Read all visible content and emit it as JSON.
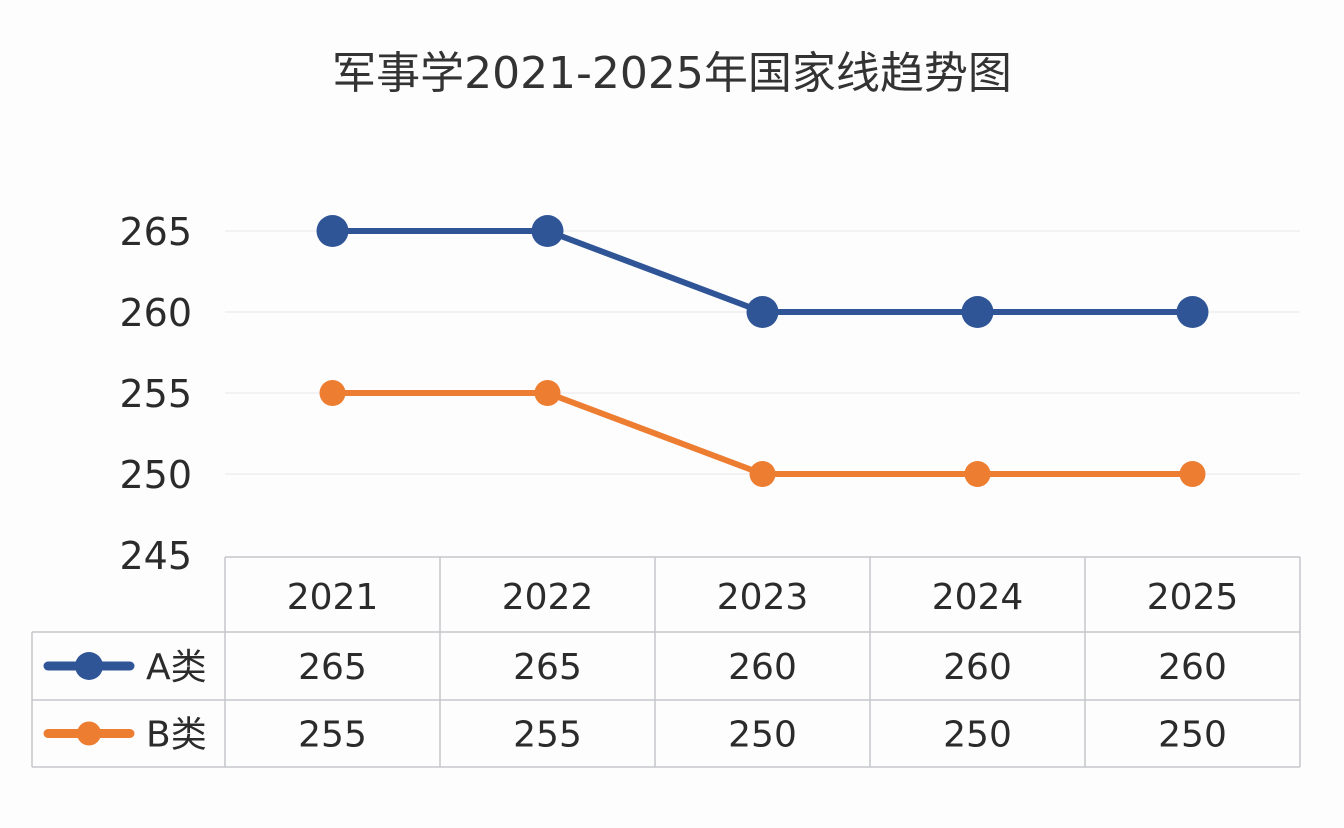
{
  "chart_data": {
    "type": "line",
    "title": "军事学2021-2025年国家线趋势图",
    "categories": [
      "2021",
      "2022",
      "2023",
      "2024",
      "2025"
    ],
    "series": [
      {
        "name": "A类",
        "values": [
          265,
          265,
          260,
          260,
          260
        ],
        "color": "#2f5597"
      },
      {
        "name": "B类",
        "values": [
          255,
          255,
          250,
          250,
          250
        ],
        "color": "#ed7d31"
      }
    ],
    "yticks": [
      245,
      250,
      255,
      260,
      265
    ],
    "ylim": [
      245,
      265
    ],
    "grid": true,
    "legend": "data-table-left",
    "data_table": true
  }
}
